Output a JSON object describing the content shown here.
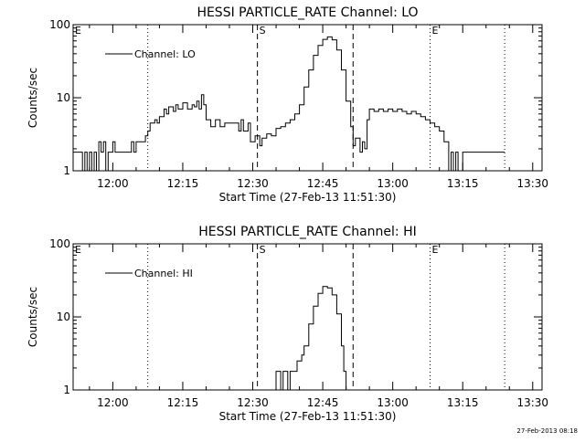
{
  "footer": {
    "timestamp": "27-Feb-2013 08:18"
  },
  "chart_data": [
    {
      "type": "line",
      "title": "HESSI PARTICLE_RATE Channel: LO",
      "xlabel": "Start Time (27-Feb-13 11:51:30)",
      "ylabel": "Counts/sec",
      "yscale": "log",
      "ylim": [
        1,
        100
      ],
      "xlim": [
        "11:51:30",
        "13:32"
      ],
      "x_ticks": [
        "12:00",
        "12:15",
        "12:30",
        "12:45",
        "13:00",
        "13:15",
        "13:30"
      ],
      "y_ticks": [
        "1",
        "10",
        "100"
      ],
      "legend": {
        "position": "top-left",
        "entries": [
          "Channel: LO"
        ]
      },
      "markers": [
        {
          "time": "12:07:30",
          "style": "dotted",
          "label": ""
        },
        {
          "time": "12:31:00",
          "style": "dashed",
          "label": "S"
        },
        {
          "time": "12:51:30",
          "style": "dashed",
          "label": ""
        },
        {
          "time": "13:08:00",
          "style": "dotted",
          "label": "E"
        },
        {
          "time": "13:24:00",
          "style": "dotted",
          "label": ""
        }
      ],
      "edge_labels": [
        "E"
      ],
      "series": [
        {
          "name": "Channel: LO",
          "points": [
            [
              "11:51:30",
              1.8
            ],
            [
              "11:53:00",
              1.8
            ],
            [
              "11:53:30",
              1
            ],
            [
              "11:54:00",
              1.8
            ],
            [
              "11:54:30",
              1
            ],
            [
              "11:55:00",
              1.8
            ],
            [
              "11:55:30",
              1
            ],
            [
              "11:56:00",
              1.8
            ],
            [
              "11:56:30",
              1
            ],
            [
              "11:57:00",
              2.5
            ],
            [
              "11:57:30",
              1.8
            ],
            [
              "11:58:00",
              2.5
            ],
            [
              "11:58:30",
              1
            ],
            [
              "11:59:00",
              1.8
            ],
            [
              "11:59:30",
              1.8
            ],
            [
              "12:00:00",
              2.5
            ],
            [
              "12:00:30",
              1.8
            ],
            [
              "12:01:00",
              1.8
            ],
            [
              "12:02:00",
              1.8
            ],
            [
              "12:03:00",
              1.8
            ],
            [
              "12:03:30",
              1.8
            ],
            [
              "12:04:00",
              2.5
            ],
            [
              "12:04:30",
              1.8
            ],
            [
              "12:05:00",
              2.5
            ],
            [
              "12:05:30",
              2.5
            ],
            [
              "12:06:30",
              2.5
            ],
            [
              "12:07:00",
              3
            ],
            [
              "12:07:30",
              3.5
            ],
            [
              "12:08:00",
              4.5
            ],
            [
              "12:09:00",
              5
            ],
            [
              "12:09:30",
              4.5
            ],
            [
              "12:10:00",
              5.5
            ],
            [
              "12:11:00",
              7
            ],
            [
              "12:11:30",
              6
            ],
            [
              "12:12:00",
              7.5
            ],
            [
              "12:13:00",
              6.5
            ],
            [
              "12:13:30",
              8
            ],
            [
              "12:14:00",
              7
            ],
            [
              "12:15:00",
              8.5
            ],
            [
              "12:16:00",
              7
            ],
            [
              "12:17:00",
              8
            ],
            [
              "12:17:30",
              7.5
            ],
            [
              "12:18:00",
              9
            ],
            [
              "12:18:30",
              7
            ],
            [
              "12:19:00",
              11
            ],
            [
              "12:19:30",
              8
            ],
            [
              "12:20:00",
              5
            ],
            [
              "12:21:00",
              4
            ],
            [
              "12:22:00",
              5
            ],
            [
              "12:23:00",
              4
            ],
            [
              "12:24:00",
              4.5
            ],
            [
              "12:25:00",
              4.5
            ],
            [
              "12:26:00",
              4.5
            ],
            [
              "12:27:00",
              3.5
            ],
            [
              "12:27:30",
              5
            ],
            [
              "12:28:00",
              3.5
            ],
            [
              "12:29:00",
              4.5
            ],
            [
              "12:29:30",
              2.5
            ],
            [
              "12:30:00",
              2.5
            ],
            [
              "12:30:30",
              3
            ],
            [
              "12:31:30",
              2.2
            ],
            [
              "12:32:00",
              2.8
            ],
            [
              "12:33:00",
              3.2
            ],
            [
              "12:34:00",
              3
            ],
            [
              "12:35:00",
              3.8
            ],
            [
              "12:36:00",
              4
            ],
            [
              "12:37:00",
              4.5
            ],
            [
              "12:38:00",
              5
            ],
            [
              "12:39:00",
              6
            ],
            [
              "12:40:00",
              8
            ],
            [
              "12:41:00",
              14
            ],
            [
              "12:42:00",
              24
            ],
            [
              "12:43:00",
              38
            ],
            [
              "12:44:00",
              52
            ],
            [
              "12:45:00",
              63
            ],
            [
              "12:46:00",
              68
            ],
            [
              "12:47:00",
              62
            ],
            [
              "12:48:00",
              45
            ],
            [
              "12:49:00",
              24
            ],
            [
              "12:50:00",
              9
            ],
            [
              "12:51:00",
              4
            ],
            [
              "12:51:30",
              2.2
            ],
            [
              "12:52:00",
              2.8
            ],
            [
              "12:53:00",
              1.8
            ],
            [
              "12:53:30",
              2.5
            ],
            [
              "12:54:00",
              2
            ],
            [
              "12:54:30",
              5
            ],
            [
              "12:55:00",
              7
            ],
            [
              "12:56:00",
              6.5
            ],
            [
              "12:57:00",
              7
            ],
            [
              "12:58:00",
              6.5
            ],
            [
              "12:59:00",
              7
            ],
            [
              "13:00:00",
              6.5
            ],
            [
              "13:01:00",
              7
            ],
            [
              "13:02:00",
              6.5
            ],
            [
              "13:03:00",
              6
            ],
            [
              "13:04:00",
              6.5
            ],
            [
              "13:05:00",
              6
            ],
            [
              "13:06:00",
              5.5
            ],
            [
              "13:07:00",
              5
            ],
            [
              "13:08:00",
              4.5
            ],
            [
              "13:09:00",
              4
            ],
            [
              "13:10:00",
              3.5
            ],
            [
              "13:11:00",
              2.5
            ],
            [
              "13:12:00",
              1
            ],
            [
              "13:12:30",
              1.8
            ],
            [
              "13:13:00",
              1
            ],
            [
              "13:13:30",
              1.8
            ],
            [
              "13:14:00",
              1
            ],
            [
              "13:15:00",
              1.8
            ],
            [
              "13:17:00",
              1.8
            ],
            [
              "13:19:00",
              1.8
            ],
            [
              "13:20:00",
              1.8
            ],
            [
              "13:22:00",
              1.8
            ],
            [
              "13:24:00",
              1.8
            ]
          ]
        }
      ]
    },
    {
      "type": "line",
      "title": "HESSI PARTICLE_RATE Channel: HI",
      "xlabel": "Start Time (27-Feb-13 11:51:30)",
      "ylabel": "Counts/sec",
      "yscale": "log",
      "ylim": [
        1,
        100
      ],
      "xlim": [
        "11:51:30",
        "13:32"
      ],
      "x_ticks": [
        "12:00",
        "12:15",
        "12:30",
        "12:45",
        "13:00",
        "13:15",
        "13:30"
      ],
      "y_ticks": [
        "1",
        "10",
        "100"
      ],
      "legend": {
        "position": "top-left",
        "entries": [
          "Channel: HI"
        ]
      },
      "markers": [
        {
          "time": "12:07:30",
          "style": "dotted",
          "label": ""
        },
        {
          "time": "12:31:00",
          "style": "dashed",
          "label": "S"
        },
        {
          "time": "12:51:30",
          "style": "dashed",
          "label": ""
        },
        {
          "time": "13:08:00",
          "style": "dotted",
          "label": "E"
        },
        {
          "time": "13:24:00",
          "style": "dotted",
          "label": ""
        }
      ],
      "edge_labels": [
        "E"
      ],
      "series": [
        {
          "name": "Channel: HI",
          "points": [
            [
              "12:34:00",
              0.85
            ],
            [
              "12:34:30",
              1
            ],
            [
              "12:35:00",
              1.8
            ],
            [
              "12:35:30",
              1.8
            ],
            [
              "12:36:00",
              1
            ],
            [
              "12:36:30",
              1.8
            ],
            [
              "12:37:00",
              1.8
            ],
            [
              "12:37:30",
              1
            ],
            [
              "12:38:00",
              1.8
            ],
            [
              "12:39:00",
              1.8
            ],
            [
              "12:39:30",
              2.5
            ],
            [
              "12:40:00",
              2.5
            ],
            [
              "12:40:30",
              3
            ],
            [
              "12:41:00",
              4
            ],
            [
              "12:42:00",
              8
            ],
            [
              "12:43:00",
              14
            ],
            [
              "12:44:00",
              21
            ],
            [
              "12:45:00",
              26
            ],
            [
              "12:46:00",
              25
            ],
            [
              "12:47:00",
              20
            ],
            [
              "12:48:00",
              11
            ],
            [
              "12:49:00",
              4
            ],
            [
              "12:49:30",
              1.8
            ],
            [
              "12:50:00",
              0.85
            ]
          ]
        }
      ]
    }
  ]
}
